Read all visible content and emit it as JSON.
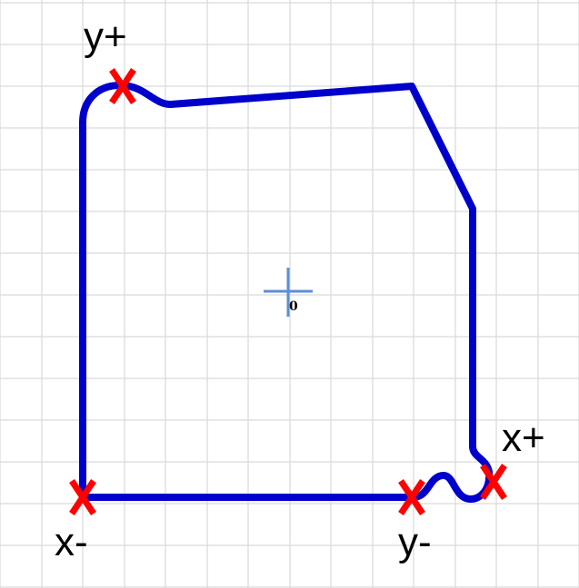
{
  "colors": {
    "background": "#ffffff",
    "grid": "#d9d9d9",
    "outline": "#0000cc",
    "marker": "#ff0000",
    "origin_cross": "#5b8fd6",
    "label": "#000000"
  },
  "origin_label": "0",
  "markers": [
    {
      "id": "y-plus",
      "label": "y+",
      "symbol": "X"
    },
    {
      "id": "x-plus",
      "label": "x+",
      "symbol": "X"
    },
    {
      "id": "y-minus",
      "label": "y-",
      "symbol": "X"
    },
    {
      "id": "x-minus",
      "label": "x-",
      "symbol": "X"
    }
  ]
}
